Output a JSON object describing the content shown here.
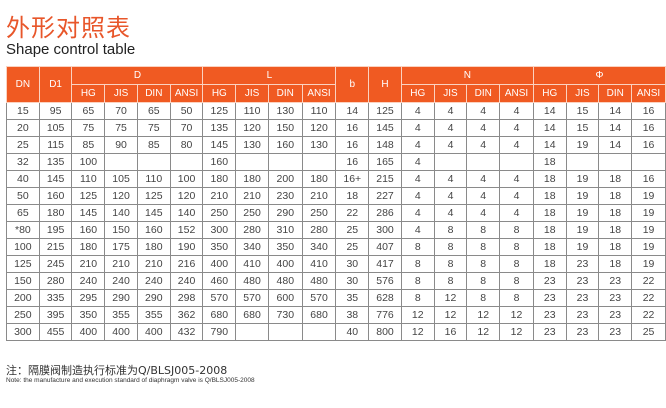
{
  "title_cn": "外形对照表",
  "title_en": "Shape control table",
  "headers": {
    "dn": "DN",
    "d1": "D1",
    "d": "D",
    "l": "L",
    "b": "b",
    "h": "H",
    "n": "N",
    "phi": "Φ",
    "sub": [
      "HG",
      "JIS",
      "DIN",
      "ANSI"
    ]
  },
  "rows": [
    [
      "15",
      "95",
      "65",
      "70",
      "65",
      "50",
      "125",
      "110",
      "130",
      "110",
      "14",
      "125",
      "4",
      "4",
      "4",
      "4",
      "14",
      "15",
      "14",
      "16"
    ],
    [
      "20",
      "105",
      "75",
      "75",
      "75",
      "70",
      "135",
      "120",
      "150",
      "120",
      "16",
      "145",
      "4",
      "4",
      "4",
      "4",
      "14",
      "15",
      "14",
      "16"
    ],
    [
      "25",
      "115",
      "85",
      "90",
      "85",
      "80",
      "145",
      "130",
      "160",
      "130",
      "16",
      "148",
      "4",
      "4",
      "4",
      "4",
      "14",
      "19",
      "14",
      "16"
    ],
    [
      "32",
      "135",
      "100",
      "",
      "",
      "",
      "160",
      "",
      "",
      "",
      "16",
      "165",
      "4",
      "",
      "",
      "",
      "18",
      "",
      "",
      ""
    ],
    [
      "40",
      "145",
      "110",
      "105",
      "110",
      "100",
      "180",
      "180",
      "200",
      "180",
      "16+",
      "215",
      "4",
      "4",
      "4",
      "4",
      "18",
      "19",
      "18",
      "16"
    ],
    [
      "50",
      "160",
      "125",
      "120",
      "125",
      "120",
      "210",
      "210",
      "230",
      "210",
      "18",
      "227",
      "4",
      "4",
      "4",
      "4",
      "18",
      "19",
      "18",
      "19"
    ],
    [
      "65",
      "180",
      "145",
      "140",
      "145",
      "140",
      "250",
      "250",
      "290",
      "250",
      "22",
      "286",
      "4",
      "4",
      "4",
      "4",
      "18",
      "19",
      "18",
      "19"
    ],
    [
      "*80",
      "195",
      "160",
      "150",
      "160",
      "152",
      "300",
      "280",
      "310",
      "280",
      "25",
      "300",
      "4",
      "8",
      "8",
      "8",
      "18",
      "19",
      "18",
      "19"
    ],
    [
      "100",
      "215",
      "180",
      "175",
      "180",
      "190",
      "350",
      "340",
      "350",
      "340",
      "25",
      "407",
      "8",
      "8",
      "8",
      "8",
      "18",
      "19",
      "18",
      "19"
    ],
    [
      "125",
      "245",
      "210",
      "210",
      "210",
      "216",
      "400",
      "410",
      "400",
      "410",
      "30",
      "417",
      "8",
      "8",
      "8",
      "8",
      "18",
      "23",
      "18",
      "19"
    ],
    [
      "150",
      "280",
      "240",
      "240",
      "240",
      "240",
      "460",
      "480",
      "480",
      "480",
      "30",
      "576",
      "8",
      "8",
      "8",
      "8",
      "23",
      "23",
      "23",
      "22"
    ],
    [
      "200",
      "335",
      "295",
      "290",
      "290",
      "298",
      "570",
      "570",
      "600",
      "570",
      "35",
      "628",
      "8",
      "12",
      "8",
      "8",
      "23",
      "23",
      "23",
      "22"
    ],
    [
      "250",
      "395",
      "350",
      "355",
      "355",
      "362",
      "680",
      "680",
      "730",
      "680",
      "38",
      "776",
      "12",
      "12",
      "12",
      "12",
      "23",
      "23",
      "23",
      "22"
    ],
    [
      "300",
      "455",
      "400",
      "400",
      "400",
      "432",
      "790",
      "",
      "",
      "",
      "40",
      "800",
      "12",
      "16",
      "12",
      "12",
      "23",
      "23",
      "23",
      "25"
    ]
  ],
  "note_cn": "注：隔膜阀制造执行标准为Q/BLSJ005-2008",
  "note_en": "Note: the manufacture and execution standard of diaphragm valve is Q/BLSJ005-2008",
  "colors": {
    "accent": "#f05a22",
    "title": "#e8562a"
  }
}
